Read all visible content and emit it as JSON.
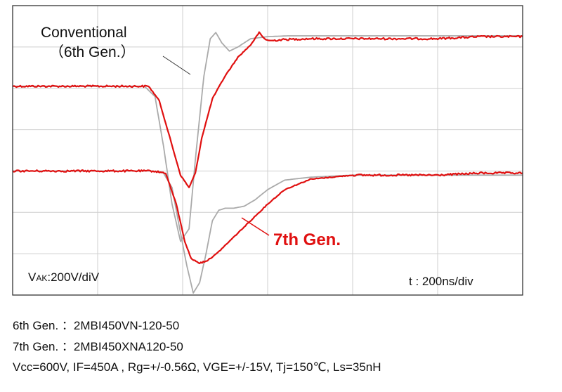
{
  "chart_data": {
    "type": "line",
    "x_unit": "ns",
    "x_division": "t : 200ns/div",
    "y_division_vak": "VAK:200V/diV",
    "labels": {
      "conventional_line1": "Conventional",
      "conventional_line2": "（6th Gen.）",
      "new_gen": "7th Gen.",
      "vak_prefix": "V",
      "vak_sub": "AK",
      "vak_suffix": ":200V/diV",
      "time_div": "t : 200ns/div"
    },
    "grid": true,
    "xlim": [
      0,
      1200
    ],
    "ylim": [
      0,
      7
    ],
    "series": [
      {
        "name": "Conventional（6th Gen.） VAK",
        "color": "#aaaaaa",
        "x": [
          0,
          310,
          335,
          355,
          375,
          395,
          415,
          432,
          450,
          465,
          478,
          492,
          510,
          530,
          560,
          600,
          650,
          700,
          800,
          900,
          1000,
          1100,
          1200
        ],
        "y": [
          5.05,
          5.05,
          4.8,
          3.6,
          2.2,
          1.3,
          1.6,
          3.5,
          5.3,
          6.2,
          6.35,
          6.1,
          5.9,
          6.0,
          6.2,
          6.25,
          6.27,
          6.27,
          6.27,
          6.27,
          6.27,
          6.27,
          6.27
        ]
      },
      {
        "name": "Conventional（6th Gen.） IF",
        "color": "#aaaaaa",
        "x": [
          0,
          330,
          355,
          375,
          395,
          410,
          425,
          440,
          455,
          470,
          485,
          500,
          520,
          545,
          570,
          600,
          640,
          700,
          800,
          900,
          1000,
          1100,
          1200
        ],
        "y": [
          3.0,
          3.0,
          2.95,
          2.6,
          1.5,
          0.7,
          0.05,
          0.3,
          1.0,
          1.8,
          2.05,
          2.1,
          2.1,
          2.15,
          2.3,
          2.55,
          2.78,
          2.85,
          2.9,
          2.9,
          2.9,
          2.9,
          2.9
        ]
      },
      {
        "name": "7th Gen. VAK",
        "color": "#e01010",
        "x": [
          0,
          320,
          345,
          370,
          395,
          415,
          430,
          445,
          470,
          500,
          530,
          560,
          580,
          592,
          605,
          640,
          700,
          800,
          900,
          1000,
          1100,
          1200
        ],
        "y": [
          5.05,
          5.05,
          4.7,
          3.8,
          2.9,
          2.6,
          2.95,
          3.8,
          4.75,
          5.3,
          5.75,
          6.05,
          6.35,
          6.2,
          6.15,
          6.18,
          6.2,
          6.2,
          6.2,
          6.2,
          6.25,
          6.25
        ]
      },
      {
        "name": "7th Gen. IF",
        "color": "#e01010",
        "x": [
          0,
          330,
          360,
          385,
          405,
          420,
          440,
          460,
          480,
          520,
          560,
          600,
          640,
          700,
          800,
          900,
          1000,
          1100,
          1200
        ],
        "y": [
          3.0,
          3.0,
          2.95,
          2.2,
          1.3,
          0.88,
          0.77,
          0.85,
          1.0,
          1.4,
          1.8,
          2.2,
          2.55,
          2.8,
          2.9,
          2.9,
          2.9,
          2.95,
          2.95
        ]
      }
    ]
  },
  "caption": {
    "line1": "6th Gen. ：2MBI450VN-120-50",
    "line2": "7th Gen. ：2MBI450XNA120-50",
    "line3": "Vcc=600V, IF=450A , Rg=+/-0.56Ω, VGE=+/-15V, Tj=150℃, Ls=35nH"
  }
}
